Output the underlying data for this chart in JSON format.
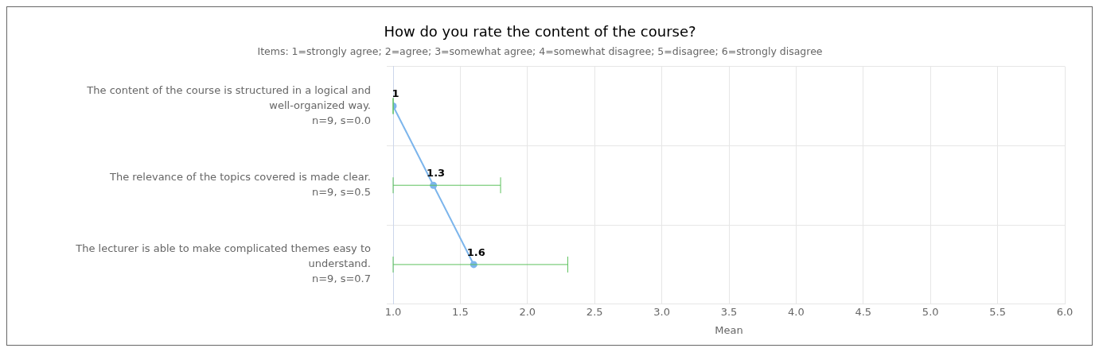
{
  "chart_data": {
    "type": "line",
    "orientation": "horizontal",
    "title": "How do you rate the content of the course?",
    "subtitle": "Items: 1=strongly agree; 2=agree; 3=somewhat agree; 4=somewhat disagree; 5=disagree; 6=strongly disagree",
    "xlabel": "Mean",
    "categories": [
      "The content of the course is structured in a logical and well-organized way.\nn=9, s=0.0",
      "The relevance of the topics covered is made clear.\nn=9, s=0.5",
      "The lecturer is able to make complicated themes easy to understand.\nn=9, s=0.7"
    ],
    "series": [
      {
        "color": "#7cb5ec",
        "values": [
          1,
          1.3,
          1.6
        ],
        "errors": [
          0,
          [
            1.0,
            1.8
          ],
          [
            1.0,
            2.3
          ]
        ]
      }
    ],
    "xlim": [
      1,
      6
    ],
    "xticks": [
      {
        "value": 1,
        "label": "1.0"
      },
      {
        "value": 1.5,
        "label": "1.5"
      },
      {
        "value": 2,
        "label": "2.0"
      },
      {
        "value": 2.5,
        "label": "2.5"
      },
      {
        "value": 3,
        "label": "3.0"
      },
      {
        "value": 3.5,
        "label": "3.5"
      },
      {
        "value": 4,
        "label": "4.0"
      },
      {
        "value": 4.5,
        "label": "4.5"
      },
      {
        "value": 5,
        "label": "5.0"
      },
      {
        "value": 5.5,
        "label": "5.5"
      },
      {
        "value": 6,
        "label": "6.0"
      }
    ],
    "grid": true,
    "legend": false,
    "marker": "circle",
    "line_style": "solid",
    "data_labels": true
  }
}
